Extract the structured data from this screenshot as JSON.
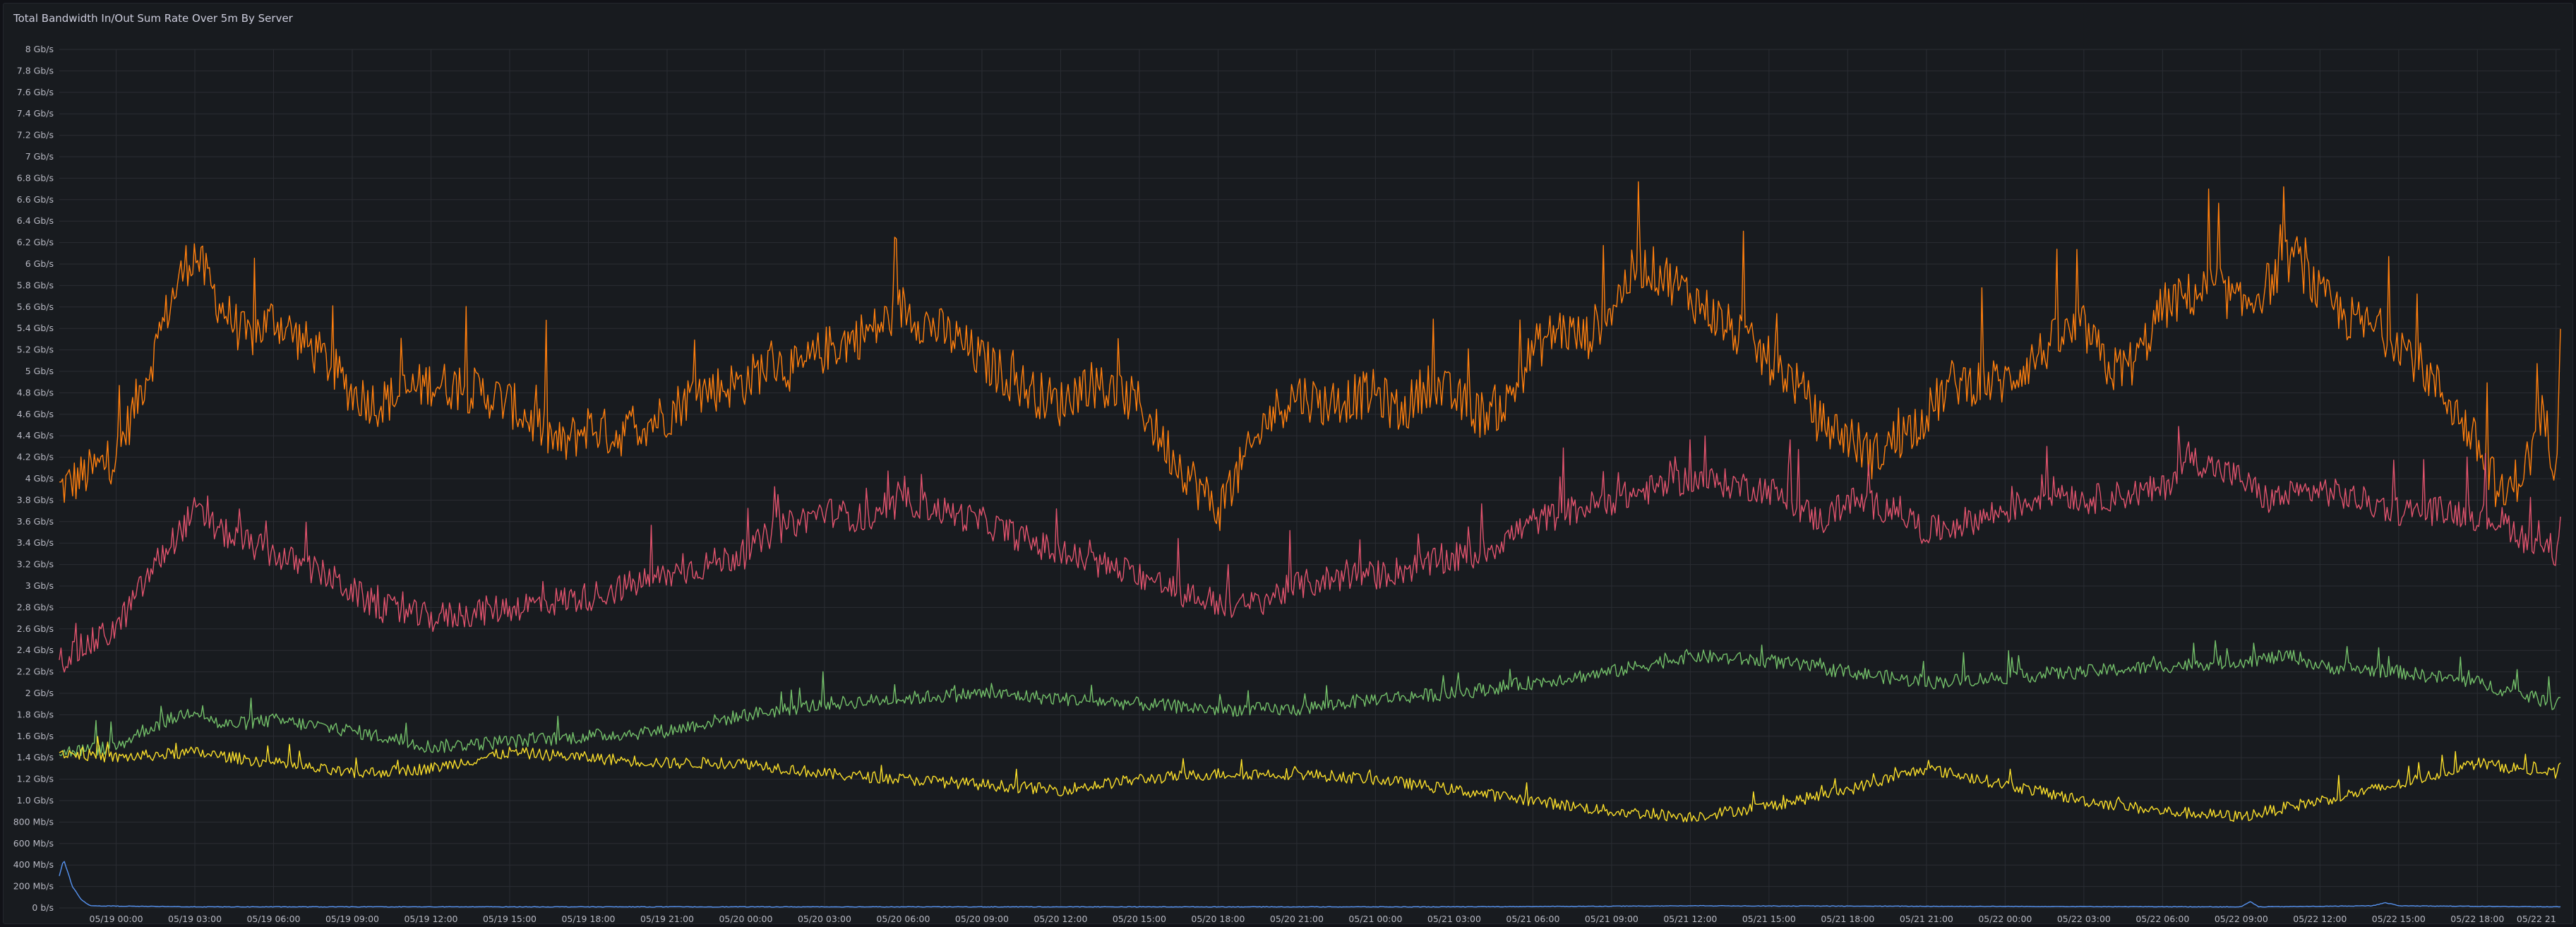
{
  "panel": {
    "title": "Total Bandwidth In/Out Sum Rate Over 5m By Server"
  },
  "chart_data": {
    "type": "line",
    "title": "Total Bandwidth In/Out Sum Rate Over 5m By Server",
    "xlabel": "",
    "ylabel": "",
    "ylim": [
      0,
      8
    ],
    "y_unit": "Gb/s",
    "xlim": [
      "05/18 21:50",
      "05/22 21:10"
    ],
    "grid": true,
    "legend": "none",
    "y_ticks": [
      {
        "value": 0,
        "label": "0 b/s"
      },
      {
        "value": 0.2,
        "label": "200 Mb/s"
      },
      {
        "value": 0.4,
        "label": "400 Mb/s"
      },
      {
        "value": 0.6,
        "label": "600 Mb/s"
      },
      {
        "value": 0.8,
        "label": "800 Mb/s"
      },
      {
        "value": 1.0,
        "label": "1.0 Gb/s"
      },
      {
        "value": 1.2,
        "label": "1.2 Gb/s"
      },
      {
        "value": 1.4,
        "label": "1.4 Gb/s"
      },
      {
        "value": 1.6,
        "label": "1.6 Gb/s"
      },
      {
        "value": 1.8,
        "label": "1.8 Gb/s"
      },
      {
        "value": 2.0,
        "label": "2 Gb/s"
      },
      {
        "value": 2.2,
        "label": "2.2 Gb/s"
      },
      {
        "value": 2.4,
        "label": "2.4 Gb/s"
      },
      {
        "value": 2.6,
        "label": "2.6 Gb/s"
      },
      {
        "value": 2.8,
        "label": "2.8 Gb/s"
      },
      {
        "value": 3.0,
        "label": "3 Gb/s"
      },
      {
        "value": 3.2,
        "label": "3.2 Gb/s"
      },
      {
        "value": 3.4,
        "label": "3.4 Gb/s"
      },
      {
        "value": 3.6,
        "label": "3.6 Gb/s"
      },
      {
        "value": 3.8,
        "label": "3.8 Gb/s"
      },
      {
        "value": 4.0,
        "label": "4 Gb/s"
      },
      {
        "value": 4.2,
        "label": "4.2 Gb/s"
      },
      {
        "value": 4.4,
        "label": "4.4 Gb/s"
      },
      {
        "value": 4.6,
        "label": "4.6 Gb/s"
      },
      {
        "value": 4.8,
        "label": "4.8 Gb/s"
      },
      {
        "value": 5.0,
        "label": "5 Gb/s"
      },
      {
        "value": 5.2,
        "label": "5.2 Gb/s"
      },
      {
        "value": 5.4,
        "label": "5.4 Gb/s"
      },
      {
        "value": 5.6,
        "label": "5.6 Gb/s"
      },
      {
        "value": 5.8,
        "label": "5.8 Gb/s"
      },
      {
        "value": 6.0,
        "label": "6 Gb/s"
      },
      {
        "value": 6.2,
        "label": "6.2 Gb/s"
      },
      {
        "value": 6.4,
        "label": "6.4 Gb/s"
      },
      {
        "value": 6.6,
        "label": "6.6 Gb/s"
      },
      {
        "value": 6.8,
        "label": "6.8 Gb/s"
      },
      {
        "value": 7.0,
        "label": "7 Gb/s"
      },
      {
        "value": 7.2,
        "label": "7.2 Gb/s"
      },
      {
        "value": 7.4,
        "label": "7.4 Gb/s"
      },
      {
        "value": 7.6,
        "label": "7.6 Gb/s"
      },
      {
        "value": 7.8,
        "label": "7.8 Gb/s"
      },
      {
        "value": 8.0,
        "label": "8 Gb/s"
      }
    ],
    "x_ticks": [
      {
        "value": "05/19 00:00",
        "label": "05/19 00:00"
      },
      {
        "value": "05/19 03:00",
        "label": "05/19 03:00"
      },
      {
        "value": "05/19 06:00",
        "label": "05/19 06:00"
      },
      {
        "value": "05/19 09:00",
        "label": "05/19 09:00"
      },
      {
        "value": "05/19 12:00",
        "label": "05/19 12:00"
      },
      {
        "value": "05/19 15:00",
        "label": "05/19 15:00"
      },
      {
        "value": "05/19 18:00",
        "label": "05/19 18:00"
      },
      {
        "value": "05/19 21:00",
        "label": "05/19 21:00"
      },
      {
        "value": "05/20 00:00",
        "label": "05/20 00:00"
      },
      {
        "value": "05/20 03:00",
        "label": "05/20 03:00"
      },
      {
        "value": "05/20 06:00",
        "label": "05/20 06:00"
      },
      {
        "value": "05/20 09:00",
        "label": "05/20 09:00"
      },
      {
        "value": "05/20 12:00",
        "label": "05/20 12:00"
      },
      {
        "value": "05/20 15:00",
        "label": "05/20 15:00"
      },
      {
        "value": "05/20 18:00",
        "label": "05/20 18:00"
      },
      {
        "value": "05/20 21:00",
        "label": "05/20 21:00"
      },
      {
        "value": "05/21 00:00",
        "label": "05/21 00:00"
      },
      {
        "value": "05/21 03:00",
        "label": "05/21 03:00"
      },
      {
        "value": "05/21 06:00",
        "label": "05/21 06:00"
      },
      {
        "value": "05/21 09:00",
        "label": "05/21 09:00"
      },
      {
        "value": "05/21 12:00",
        "label": "05/21 12:00"
      },
      {
        "value": "05/21 15:00",
        "label": "05/21 15:00"
      },
      {
        "value": "05/21 18:00",
        "label": "05/21 18:00"
      },
      {
        "value": "05/21 21:00",
        "label": "05/21 21:00"
      },
      {
        "value": "05/22 00:00",
        "label": "05/22 00:00"
      },
      {
        "value": "05/22 03:00",
        "label": "05/22 03:00"
      },
      {
        "value": "05/22 06:00",
        "label": "05/22 06:00"
      },
      {
        "value": "05/22 09:00",
        "label": "05/22 09:00"
      },
      {
        "value": "05/22 12:00",
        "label": "05/22 12:00"
      },
      {
        "value": "05/22 15:00",
        "label": "05/22 15:00"
      },
      {
        "value": "05/22 18:00",
        "label": "05/22 18:00"
      },
      {
        "value": "05/22 21",
        "label": "05/22 21"
      }
    ],
    "series": [
      {
        "color": "#ff7f0e",
        "x": [
          "05/18 21:50",
          "05/19 00:00",
          "05/19 01:30",
          "05/19 02:00",
          "05/19 02:40",
          "05/19 03:00",
          "05/19 04:00",
          "05/19 05:00",
          "05/19 06:00",
          "05/19 07:00",
          "05/19 08:00",
          "05/19 09:00",
          "05/19 10:00",
          "05/19 12:00",
          "05/19 14:00",
          "05/19 15:00",
          "05/19 17:00",
          "05/19 18:00",
          "05/19 19:00",
          "05/19 21:00",
          "05/19 22:00",
          "05/20 00:00",
          "05/20 01:00",
          "05/20 02:00",
          "05/20 03:00",
          "05/20 05:00",
          "05/20 06:00",
          "05/20 06:30",
          "05/20 08:00",
          "05/20 09:00",
          "05/20 11:00",
          "05/20 12:00",
          "05/20 13:00",
          "05/20 15:00",
          "05/20 16:00",
          "05/20 18:00",
          "05/20 20:00",
          "05/20 21:00",
          "05/20 22:00",
          "05/21 00:00",
          "05/21 01:00",
          "05/21 02:00",
          "05/21 04:00",
          "05/21 05:00",
          "05/21 06:00",
          "05/21 07:00",
          "05/21 08:00",
          "05/21 09:00",
          "05/21 10:00",
          "05/21 11:00",
          "05/21 12:00",
          "05/21 14:00",
          "05/21 15:00",
          "05/21 16:00",
          "05/21 17:00",
          "05/21 18:00",
          "05/21 19:00",
          "05/21 21:00",
          "05/21 22:00",
          "05/22 00:00",
          "05/22 01:00",
          "05/22 02:00",
          "05/22 03:00",
          "05/22 04:00",
          "05/22 05:00",
          "05/22 06:00",
          "05/22 07:00",
          "05/22 08:00",
          "05/22 09:00",
          "05/22 10:00",
          "05/22 11:00",
          "05/22 12:00",
          "05/22 13:00",
          "05/22 15:00",
          "05/22 16:00",
          "05/22 17:00",
          "05/22 18:00",
          "05/22 19:00",
          "05/22 20:00",
          "05/22 20:30",
          "05/22 21:00",
          "05/22 21:10"
        ],
        "values": [
          3.9,
          4.2,
          5.2,
          5.6,
          6.0,
          6.1,
          5.6,
          5.3,
          5.5,
          5.3,
          5.1,
          4.8,
          4.7,
          4.9,
          4.8,
          4.7,
          4.3,
          4.5,
          4.4,
          4.6,
          4.8,
          4.9,
          5.1,
          5.0,
          5.2,
          5.4,
          5.6,
          5.5,
          5.3,
          5.1,
          4.8,
          4.7,
          4.9,
          4.7,
          4.3,
          3.7,
          4.6,
          4.8,
          4.7,
          4.8,
          4.6,
          4.9,
          4.6,
          4.7,
          5.2,
          5.4,
          5.3,
          5.6,
          6.0,
          5.9,
          5.7,
          5.3,
          5.1,
          4.9,
          4.5,
          4.4,
          4.2,
          4.6,
          4.9,
          4.9,
          5.1,
          5.3,
          5.4,
          5.0,
          5.1,
          5.6,
          5.7,
          5.8,
          5.6,
          5.8,
          6.1,
          5.7,
          5.5,
          5.3,
          5.0,
          4.7,
          4.3,
          3.8,
          4.2,
          4.6,
          4.1,
          5.6
        ]
      },
      {
        "color": "#e0536d",
        "x": [
          "05/18 21:50",
          "05/19 00:00",
          "05/19 01:30",
          "05/19 03:00",
          "05/19 04:00",
          "05/19 06:00",
          "05/19 08:00",
          "05/19 10:00",
          "05/19 12:00",
          "05/19 15:00",
          "05/19 18:00",
          "05/19 21:00",
          "05/20 00:00",
          "05/20 01:00",
          "05/20 02:00",
          "05/20 03:00",
          "05/20 05:00",
          "05/20 06:00",
          "05/20 09:00",
          "05/20 12:00",
          "05/20 15:00",
          "05/20 17:00",
          "05/20 19:00",
          "05/20 21:00",
          "05/20 23:00",
          "05/21 00:00",
          "05/21 02:00",
          "05/21 04:00",
          "05/21 06:00",
          "05/21 09:00",
          "05/21 12:00",
          "05/21 15:00",
          "05/21 17:00",
          "05/21 18:00",
          "05/21 20:00",
          "05/21 21:00",
          "05/22 00:00",
          "05/22 02:00",
          "05/22 03:00",
          "05/22 06:00",
          "05/22 07:00",
          "05/22 09:00",
          "05/22 10:00",
          "05/22 12:00",
          "05/22 15:00",
          "05/22 17:00",
          "05/22 19:00",
          "05/22 20:00",
          "05/22 21:00",
          "05/22 21:10"
        ],
        "values": [
          2.3,
          2.6,
          3.2,
          3.7,
          3.5,
          3.3,
          3.1,
          2.8,
          2.7,
          2.8,
          2.9,
          3.1,
          3.3,
          3.5,
          3.6,
          3.7,
          3.6,
          3.8,
          3.6,
          3.3,
          3.1,
          2.9,
          2.8,
          3.0,
          3.1,
          3.1,
          3.2,
          3.3,
          3.6,
          3.8,
          4.0,
          3.9,
          3.6,
          3.8,
          3.7,
          3.5,
          3.7,
          3.9,
          3.8,
          3.9,
          4.2,
          4.0,
          3.8,
          3.9,
          3.7,
          3.7,
          3.6,
          3.4,
          3.3,
          3.7
        ]
      },
      {
        "color": "#73bf69",
        "x": [
          "05/18 21:50",
          "05/19 00:00",
          "05/19 01:00",
          "05/19 02:00",
          "05/19 03:00",
          "05/19 04:00",
          "05/19 06:00",
          "05/19 09:00",
          "05/19 12:00",
          "05/19 15:00",
          "05/19 18:00",
          "05/19 21:00",
          "05/20 00:00",
          "05/20 03:00",
          "05/20 06:00",
          "05/20 09:00",
          "05/20 12:00",
          "05/20 15:00",
          "05/20 18:00",
          "05/20 21:00",
          "05/21 00:00",
          "05/21 03:00",
          "05/21 06:00",
          "05/21 09:00",
          "05/21 12:00",
          "05/21 15:00",
          "05/21 18:00",
          "05/21 21:00",
          "05/22 00:00",
          "05/22 03:00",
          "05/22 06:00",
          "05/22 09:00",
          "05/22 11:00",
          "05/22 12:00",
          "05/22 15:00",
          "05/22 18:00",
          "05/22 21:00",
          "05/22 21:10"
        ],
        "values": [
          1.45,
          1.5,
          1.65,
          1.75,
          1.85,
          1.7,
          1.75,
          1.65,
          1.5,
          1.55,
          1.6,
          1.65,
          1.8,
          1.9,
          1.95,
          2.0,
          1.95,
          1.9,
          1.85,
          1.85,
          1.95,
          2.0,
          2.1,
          2.2,
          2.35,
          2.3,
          2.2,
          2.1,
          2.15,
          2.2,
          2.25,
          2.3,
          2.35,
          2.25,
          2.2,
          2.1,
          1.9,
          2.0
        ]
      },
      {
        "color": "#fade2a",
        "x": [
          "05/18 21:50",
          "05/19 00:00",
          "05/19 03:00",
          "05/19 06:00",
          "05/19 09:00",
          "05/19 12:00",
          "05/19 15:00",
          "05/19 18:00",
          "05/19 21:00",
          "05/20 00:00",
          "05/20 03:00",
          "05/20 06:00",
          "05/20 09:00",
          "05/20 12:00",
          "05/20 15:00",
          "05/20 18:00",
          "05/20 21:00",
          "05/21 00:00",
          "05/21 03:00",
          "05/21 06:00",
          "05/21 09:00",
          "05/21 12:00",
          "05/21 15:00",
          "05/21 18:00",
          "05/21 21:00",
          "05/22 00:00",
          "05/22 03:00",
          "05/22 06:00",
          "05/22 09:00",
          "05/22 12:00",
          "05/22 15:00",
          "05/22 18:00",
          "05/22 21:00",
          "05/22 21:10"
        ],
        "values": [
          1.45,
          1.4,
          1.45,
          1.35,
          1.25,
          1.3,
          1.45,
          1.4,
          1.35,
          1.35,
          1.25,
          1.2,
          1.15,
          1.1,
          1.2,
          1.25,
          1.25,
          1.2,
          1.1,
          1.0,
          0.9,
          0.85,
          0.95,
          1.1,
          1.3,
          1.15,
          1.0,
          0.9,
          0.85,
          1.0,
          1.15,
          1.35,
          1.25,
          1.3
        ]
      },
      {
        "color": "#5794f2",
        "x": [
          "05/18 21:50",
          "05/18 22:00",
          "05/18 22:20",
          "05/18 22:40",
          "05/18 23:00",
          "05/19 03:00",
          "05/20 00:00",
          "05/21 03:00",
          "05/21 12:00",
          "05/22 09:00",
          "05/22 09:20",
          "05/22 09:40",
          "05/22 14:00",
          "05/22 14:30",
          "05/22 15:00",
          "05/22 21:10"
        ],
        "values": [
          0.3,
          0.45,
          0.2,
          0.08,
          0.02,
          0.01,
          0.01,
          0.01,
          0.02,
          0.01,
          0.06,
          0.01,
          0.02,
          0.05,
          0.02,
          0.01
        ]
      }
    ]
  }
}
